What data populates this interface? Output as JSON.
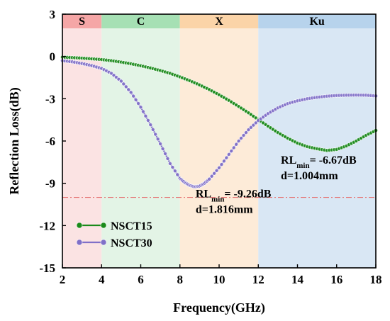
{
  "chart_data": {
    "type": "line",
    "xlabel": "Frequency(GHz)",
    "ylabel": "Reflection Loss(dB)",
    "xlim": [
      2,
      18
    ],
    "ylim": [
      -15,
      3
    ],
    "xticks": [
      2,
      4,
      6,
      8,
      10,
      12,
      14,
      16,
      18
    ],
    "yticks": [
      3,
      0,
      -3,
      -6,
      -9,
      -12,
      -15
    ],
    "bands": [
      {
        "label": "S",
        "from": 2,
        "to": 4,
        "color": "#fbe3e3",
        "header_color": "#f5a6a6"
      },
      {
        "label": "C",
        "from": 4,
        "to": 8,
        "color": "#e3f4e6",
        "header_color": "#a6e0b4"
      },
      {
        "label": "X",
        "from": 8,
        "to": 12,
        "color": "#fdebd8",
        "header_color": "#fbd4a8"
      },
      {
        "label": "Ku",
        "from": 12,
        "to": 18,
        "color": "#d9e7f4",
        "header_color": "#b7d3ec"
      }
    ],
    "reference_line": {
      "y": -10,
      "color": "#e57373",
      "style": "dash-dot"
    },
    "legend": {
      "position": "bottom-left"
    },
    "series": [
      {
        "name": "NSCT15",
        "color": "#1a8a1a",
        "x": [
          2,
          2.5,
          3,
          3.5,
          4,
          4.5,
          5,
          5.5,
          6,
          6.5,
          7,
          7.5,
          8,
          8.5,
          9,
          9.5,
          10,
          10.5,
          11,
          11.5,
          12,
          12.5,
          13,
          13.5,
          14,
          14.5,
          15,
          15.5,
          16,
          16.5,
          17,
          17.5,
          18
        ],
        "y": [
          -0.05,
          -0.08,
          -0.12,
          -0.17,
          -0.22,
          -0.3,
          -0.4,
          -0.52,
          -0.66,
          -0.82,
          -1.0,
          -1.2,
          -1.45,
          -1.72,
          -2.02,
          -2.35,
          -2.72,
          -3.12,
          -3.55,
          -4.0,
          -4.48,
          -4.95,
          -5.4,
          -5.8,
          -6.15,
          -6.4,
          -6.55,
          -6.67,
          -6.6,
          -6.35,
          -6.0,
          -5.6,
          -5.25
        ]
      },
      {
        "name": "NSCT30",
        "color": "#8070c8",
        "x": [
          2,
          2.5,
          3,
          3.5,
          4,
          4.5,
          5,
          5.5,
          6,
          6.5,
          7,
          7.5,
          8,
          8.25,
          8.5,
          8.75,
          9,
          9.25,
          9.5,
          10,
          10.5,
          11,
          11.5,
          12,
          12.5,
          13,
          13.5,
          14,
          14.5,
          15,
          15.5,
          16,
          16.5,
          17,
          17.5,
          18
        ],
        "y": [
          -0.3,
          -0.38,
          -0.5,
          -0.65,
          -0.85,
          -1.2,
          -1.75,
          -2.55,
          -3.6,
          -4.85,
          -6.2,
          -7.6,
          -8.65,
          -8.95,
          -9.15,
          -9.25,
          -9.2,
          -9.0,
          -8.7,
          -7.9,
          -6.95,
          -6.0,
          -5.2,
          -4.55,
          -4.05,
          -3.65,
          -3.35,
          -3.15,
          -3.0,
          -2.9,
          -2.82,
          -2.77,
          -2.75,
          -2.74,
          -2.75,
          -2.8
        ]
      }
    ],
    "annotations": [
      {
        "name": "rl-min-nsct30",
        "prefix": "RL",
        "sub": "min",
        "suffix": "= -9.26dB",
        "second_line": "d=1.816mm",
        "x": 8.8,
        "y": -10.0
      },
      {
        "name": "rl-min-nsct15",
        "prefix": "RL",
        "sub": "min",
        "suffix": "= -6.67dB",
        "second_line": "d=1.004mm",
        "x": 13.15,
        "y": -7.6
      }
    ]
  }
}
